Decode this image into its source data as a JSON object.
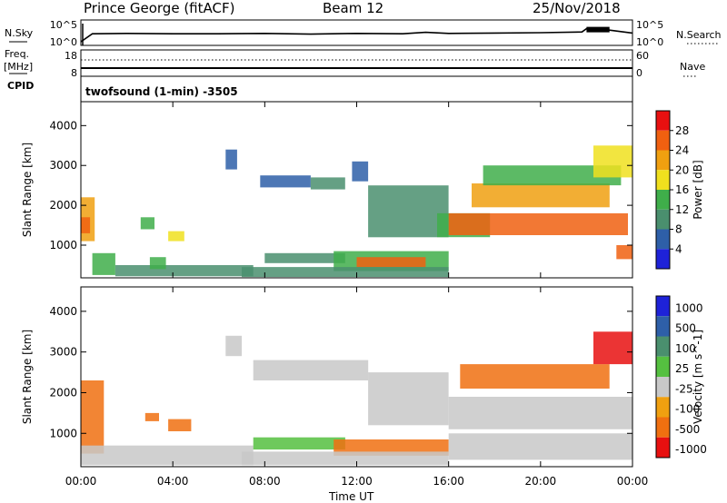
{
  "header": {
    "station": "Prince George (fitACF)",
    "beam": "Beam 12",
    "date": "25/Nov/2018"
  },
  "side_labels": {
    "nsky": "N.Sky",
    "freq": "Freq.",
    "freq_unit": "[MHz]",
    "cpid": "CPID",
    "nsearch": "N.Search",
    "nave": "Nave"
  },
  "mode_label": "twofsound (1-min) -3505",
  "xlabel": "Time UT",
  "colors": {
    "power": [
      "#1e22d8",
      "#2e5fa8",
      "#4a8f6e",
      "#3fae4a",
      "#f0e01e",
      "#f0a010",
      "#f06010",
      "#e81010"
    ],
    "velocity": [
      "#1e22d8",
      "#2e5fa8",
      "#4a8f6e",
      "#55c040",
      "#c8c8c8",
      "#f0a010",
      "#f07010",
      "#e81010"
    ]
  },
  "chart_data": [
    {
      "type": "line",
      "name": "noise-panel",
      "x_range": [
        0,
        24
      ],
      "left_ticks": [
        "10^5",
        "10^0"
      ],
      "right_ticks": [
        "10^5",
        "10^0"
      ],
      "series": [
        {
          "name": "N.Sky",
          "x": [
            0,
            0.5,
            2,
            4,
            6,
            8,
            10,
            12,
            14,
            15,
            16,
            18,
            20,
            21.8,
            22,
            23,
            24
          ],
          "y": [
            0,
            2.2,
            2.3,
            2.2,
            2.2,
            2.3,
            2.1,
            2.3,
            2.2,
            2.6,
            2.3,
            2.4,
            2.5,
            2.7,
            3.6,
            3.2,
            2.4
          ]
        }
      ]
    },
    {
      "type": "line",
      "name": "freq-panel",
      "x_range": [
        0,
        24
      ],
      "left_ticks": [
        "18",
        "8"
      ],
      "right_ticks": [
        "60",
        "0"
      ],
      "series": [
        {
          "name": "Freq",
          "x": [
            0,
            24
          ],
          "y": [
            10.5,
            10.5
          ]
        },
        {
          "name": "Nave",
          "x": [
            0,
            24
          ],
          "y": [
            39,
            39
          ]
        }
      ]
    },
    {
      "type": "heatmap",
      "name": "power-panel",
      "x": [
        0,
        24
      ],
      "xticks": [
        "00:00",
        "04:00",
        "08:00",
        "12:00",
        "16:00",
        "20:00",
        "00:00"
      ],
      "yticks": [
        1000,
        2000,
        3000,
        4000
      ],
      "ylim": [
        180,
        4600
      ],
      "ylabel": "Slant Range [km]",
      "colorbar": {
        "label": "Power [dB]",
        "ticks": [
          4,
          8,
          12,
          16,
          20,
          24,
          28
        ]
      },
      "regions": [
        {
          "x": [
            0,
            0.6
          ],
          "y": [
            1100,
            2200
          ],
          "value": 20
        },
        {
          "x": [
            0,
            0.4
          ],
          "y": [
            1300,
            1700
          ],
          "value": 26
        },
        {
          "x": [
            0.5,
            1.5
          ],
          "y": [
            250,
            800
          ],
          "value": 14
        },
        {
          "x": [
            1.5,
            7.5
          ],
          "y": [
            220,
            500
          ],
          "value": 10
        },
        {
          "x": [
            2.6,
            3.2
          ],
          "y": [
            1400,
            1700
          ],
          "value": 14
        },
        {
          "x": [
            3.8,
            4.5
          ],
          "y": [
            1100,
            1350
          ],
          "value": 16
        },
        {
          "x": [
            3.0,
            3.7
          ],
          "y": [
            400,
            700
          ],
          "value": 12
        },
        {
          "x": [
            6.3,
            6.8
          ],
          "y": [
            2900,
            3400
          ],
          "value": 6
        },
        {
          "x": [
            7.8,
            10.0
          ],
          "y": [
            2450,
            2750
          ],
          "value": 6
        },
        {
          "x": [
            10.0,
            11.5
          ],
          "y": [
            2400,
            2700
          ],
          "value": 8
        },
        {
          "x": [
            11.8,
            12.5
          ],
          "y": [
            2600,
            3100
          ],
          "value": 6
        },
        {
          "x": [
            12.5,
            16.0
          ],
          "y": [
            1200,
            2500
          ],
          "value": 8
        },
        {
          "x": [
            8.0,
            11.5
          ],
          "y": [
            550,
            800
          ],
          "value": 8
        },
        {
          "x": [
            11.0,
            16.0
          ],
          "y": [
            350,
            850
          ],
          "value": 14
        },
        {
          "x": [
            12.0,
            15.0
          ],
          "y": [
            450,
            700
          ],
          "value": 27
        },
        {
          "x": [
            15.5,
            17.8
          ],
          "y": [
            1200,
            1800
          ],
          "value": 12
        },
        {
          "x": [
            16.0,
            23.8
          ],
          "y": [
            1250,
            1800
          ],
          "value": 24
        },
        {
          "x": [
            17.0,
            23.0
          ],
          "y": [
            1950,
            2550
          ],
          "value": 22
        },
        {
          "x": [
            17.5,
            23.5
          ],
          "y": [
            2500,
            3000
          ],
          "value": 14
        },
        {
          "x": [
            22.3,
            24.0
          ],
          "y": [
            2700,
            3500
          ],
          "value": 18
        },
        {
          "x": [
            23.3,
            24.0
          ],
          "y": [
            650,
            1000
          ],
          "value": 24
        },
        {
          "x": [
            7.0,
            16.0
          ],
          "y": [
            200,
            450
          ],
          "value": 8
        }
      ]
    },
    {
      "type": "heatmap",
      "name": "velocity-panel",
      "x": [
        0,
        24
      ],
      "xticks": [
        "00:00",
        "04:00",
        "08:00",
        "12:00",
        "16:00",
        "20:00",
        "00:00"
      ],
      "yticks": [
        1000,
        2000,
        3000,
        4000
      ],
      "ylim": [
        180,
        4600
      ],
      "ylabel": "Slant Range [km]",
      "xlabel": "Time UT",
      "colorbar": {
        "label": "Velocity [m s^-1]",
        "ticks": [
          1000,
          500,
          100,
          25,
          -25,
          -100,
          -500,
          -1000
        ]
      },
      "regions": [
        {
          "x": [
            0,
            1.0
          ],
          "y": [
            500,
            2300
          ],
          "value": -200
        },
        {
          "x": [
            0,
            7.5
          ],
          "y": [
            220,
            700
          ],
          "value": 0
        },
        {
          "x": [
            2.8,
            3.4
          ],
          "y": [
            1300,
            1500
          ],
          "value": -300
        },
        {
          "x": [
            3.8,
            4.8
          ],
          "y": [
            1050,
            1350
          ],
          "value": -200
        },
        {
          "x": [
            6.3,
            7.0
          ],
          "y": [
            2900,
            3400
          ],
          "value": 0
        },
        {
          "x": [
            7.5,
            12.5
          ],
          "y": [
            2300,
            2800
          ],
          "value": 0
        },
        {
          "x": [
            12.5,
            16.0
          ],
          "y": [
            1200,
            2500
          ],
          "value": 0
        },
        {
          "x": [
            7.5,
            11.5
          ],
          "y": [
            600,
            900
          ],
          "value": 50
        },
        {
          "x": [
            11.0,
            16.0
          ],
          "y": [
            450,
            850
          ],
          "value": -150
        },
        {
          "x": [
            7.0,
            16.0
          ],
          "y": [
            220,
            550
          ],
          "value": 0
        },
        {
          "x": [
            16.0,
            24.0
          ],
          "y": [
            1100,
            1900
          ],
          "value": 0
        },
        {
          "x": [
            16.5,
            23.0
          ],
          "y": [
            2100,
            2700
          ],
          "value": -300
        },
        {
          "x": [
            22.3,
            24.0
          ],
          "y": [
            2700,
            3500
          ],
          "value": -600
        },
        {
          "x": [
            16.0,
            24.0
          ],
          "y": [
            350,
            1000
          ],
          "value": 0
        }
      ]
    }
  ]
}
